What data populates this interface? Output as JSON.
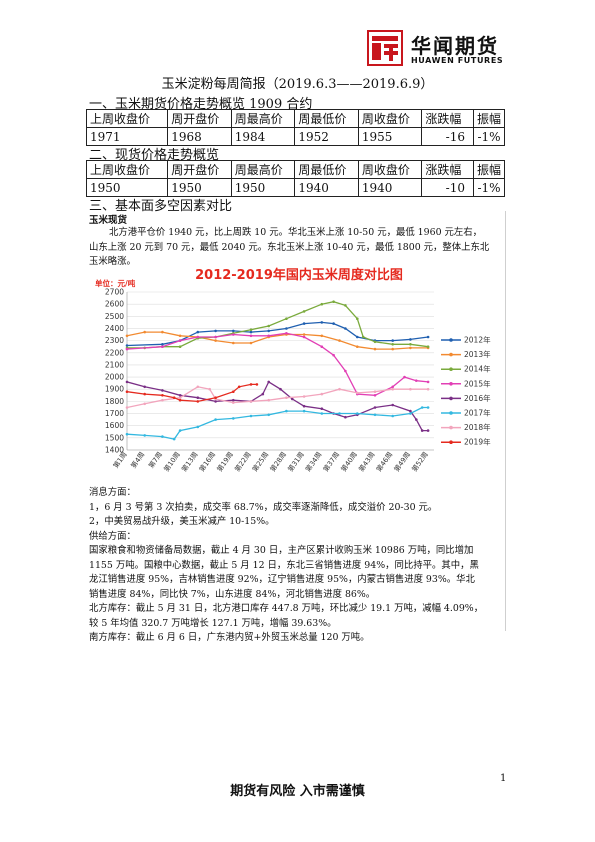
{
  "header": {
    "company_cn": "华闻期货",
    "company_en": "HUAWEN FUTURES",
    "logo_color": "#c8161d"
  },
  "title": "玉米淀粉每周简报（2019.6.3——2019.6.9）",
  "section1": {
    "heading": "一、玉米期货价格走势概览 1909 合约",
    "headers": [
      "上周收盘价",
      "周开盘价",
      "周最高价",
      "周最低价",
      "周收盘价",
      "涨跌幅",
      "振幅"
    ],
    "values": [
      "1971",
      "1968",
      "1984",
      "1952",
      "1955",
      "-16",
      "-1%"
    ]
  },
  "section2": {
    "heading": "二、现货价格走势概览",
    "headers": [
      "上周收盘价",
      "周开盘价",
      "周最高价",
      "周最低价",
      "周收盘价",
      "涨跌幅",
      "振幅"
    ],
    "values": [
      "1950",
      "1950",
      "1950",
      "1940",
      "1940",
      "-10",
      "-1%"
    ]
  },
  "section3": {
    "heading": "三、基本面多空因素对比",
    "sub": "玉米现货",
    "spot_lines": [
      "北方港平仓价 1940 元，比上周跌 10 元。华北玉米上涨 10-50 元，最低 1960 元左右，",
      "山东上涨 20 元到 70 元，最低 2040 元。东北玉米上涨 10-40 元，最低 1800 元，整体上东北",
      "玉米略涨。"
    ],
    "news_lines": [
      "消息方面：",
      "1，6 月 3 号第 3 次拍卖，成交率 68.7%，成交率逐渐降低，成交溢价 20-30 元。",
      "2，中美贸易战升级，美玉米减产 10-15%。",
      "供给方面：",
      "国家粮食和物资储备局数据，截止 4 月 30 日，主产区累计收购玉米 10986 万吨，同比增加",
      "1155 万吨。国粮中心数据，截止 5 月 12 日，东北三省销售进度 94%，同比持平。其中，黑",
      "龙江销售进度 95%，吉林销售进度 92%，辽宁销售进度 95%，内蒙古销售进度 93%。华北",
      "销售进度 84%，同比快 7%，山东进度 84%，河北销售进度 86%。",
      "北方库存：截止 5 月 31 日，北方港口库存 447.8 万吨，环比减少 19.1 万吨，减幅 4.09%，",
      "较 5 年均值 320.7 万吨增长 127.1 万吨，增幅 39.63%。",
      "南方库存：截止 6 月 6 日，广东港内贸+外贸玉米总量 120 万吨。"
    ]
  },
  "chart_data": {
    "type": "line",
    "title": "2012-2019年国内玉米周度对比图",
    "unit_label": "单位：元/吨",
    "ylim": [
      1400,
      2700
    ],
    "yticks": [
      1400,
      1500,
      1600,
      1700,
      1800,
      1900,
      2000,
      2100,
      2200,
      2300,
      2400,
      2500,
      2600,
      2700
    ],
    "xticks": [
      "第1周",
      "第4周",
      "第7周",
      "第10周",
      "第13周",
      "第16周",
      "第19周",
      "第22周",
      "第25周",
      "第28周",
      "第31周",
      "第34周",
      "第37周",
      "第40周",
      "第43周",
      "第46周",
      "第49周",
      "第52周"
    ],
    "grid": true,
    "legend_position": "right",
    "series": [
      {
        "name": "2012年",
        "color": "#1f5fb0",
        "points": [
          [
            1,
            2260
          ],
          [
            7,
            2270
          ],
          [
            10,
            2300
          ],
          [
            13,
            2370
          ],
          [
            16,
            2380
          ],
          [
            19,
            2380
          ],
          [
            22,
            2370
          ],
          [
            25,
            2380
          ],
          [
            28,
            2400
          ],
          [
            31,
            2440
          ],
          [
            34,
            2450
          ],
          [
            36,
            2440
          ],
          [
            38,
            2400
          ],
          [
            40,
            2330
          ],
          [
            43,
            2300
          ],
          [
            46,
            2300
          ],
          [
            49,
            2310
          ],
          [
            52,
            2330
          ]
        ]
      },
      {
        "name": "2013年",
        "color": "#f28a30",
        "points": [
          [
            1,
            2340
          ],
          [
            4,
            2370
          ],
          [
            7,
            2370
          ],
          [
            10,
            2340
          ],
          [
            13,
            2330
          ],
          [
            16,
            2300
          ],
          [
            19,
            2280
          ],
          [
            22,
            2280
          ],
          [
            25,
            2330
          ],
          [
            28,
            2350
          ],
          [
            31,
            2350
          ],
          [
            34,
            2340
          ],
          [
            37,
            2300
          ],
          [
            40,
            2250
          ],
          [
            43,
            2230
          ],
          [
            46,
            2230
          ],
          [
            49,
            2240
          ],
          [
            52,
            2240
          ]
        ]
      },
      {
        "name": "2014年",
        "color": "#7aaa3c",
        "points": [
          [
            1,
            2240
          ],
          [
            4,
            2240
          ],
          [
            7,
            2250
          ],
          [
            10,
            2250
          ],
          [
            13,
            2320
          ],
          [
            16,
            2330
          ],
          [
            19,
            2360
          ],
          [
            22,
            2390
          ],
          [
            25,
            2420
          ],
          [
            28,
            2480
          ],
          [
            31,
            2540
          ],
          [
            34,
            2600
          ],
          [
            36,
            2620
          ],
          [
            38,
            2590
          ],
          [
            40,
            2480
          ],
          [
            41,
            2330
          ],
          [
            43,
            2290
          ],
          [
            46,
            2270
          ],
          [
            49,
            2270
          ],
          [
            52,
            2250
          ]
        ]
      },
      {
        "name": "2015年",
        "color": "#e23fb5",
        "points": [
          [
            1,
            2230
          ],
          [
            7,
            2250
          ],
          [
            10,
            2300
          ],
          [
            13,
            2330
          ],
          [
            16,
            2330
          ],
          [
            19,
            2350
          ],
          [
            22,
            2340
          ],
          [
            25,
            2340
          ],
          [
            28,
            2360
          ],
          [
            31,
            2330
          ],
          [
            34,
            2250
          ],
          [
            36,
            2180
          ],
          [
            38,
            2050
          ],
          [
            40,
            1860
          ],
          [
            43,
            1850
          ],
          [
            46,
            1920
          ],
          [
            48,
            2000
          ],
          [
            50,
            1970
          ],
          [
            52,
            1960
          ]
        ]
      },
      {
        "name": "2016年",
        "color": "#7a2f86",
        "points": [
          [
            1,
            1960
          ],
          [
            4,
            1920
          ],
          [
            7,
            1890
          ],
          [
            10,
            1850
          ],
          [
            13,
            1830
          ],
          [
            16,
            1800
          ],
          [
            19,
            1810
          ],
          [
            22,
            1800
          ],
          [
            24,
            1860
          ],
          [
            25,
            1960
          ],
          [
            27,
            1900
          ],
          [
            29,
            1820
          ],
          [
            31,
            1760
          ],
          [
            34,
            1740
          ],
          [
            36,
            1700
          ],
          [
            38,
            1670
          ],
          [
            40,
            1690
          ],
          [
            43,
            1750
          ],
          [
            46,
            1770
          ],
          [
            49,
            1720
          ],
          [
            50,
            1650
          ],
          [
            51,
            1560
          ],
          [
            52,
            1560
          ]
        ]
      },
      {
        "name": "2017年",
        "color": "#33b8e0",
        "points": [
          [
            1,
            1530
          ],
          [
            4,
            1520
          ],
          [
            7,
            1510
          ],
          [
            9,
            1490
          ],
          [
            10,
            1560
          ],
          [
            13,
            1590
          ],
          [
            16,
            1650
          ],
          [
            19,
            1660
          ],
          [
            22,
            1680
          ],
          [
            25,
            1690
          ],
          [
            28,
            1720
          ],
          [
            31,
            1720
          ],
          [
            34,
            1700
          ],
          [
            37,
            1700
          ],
          [
            40,
            1700
          ],
          [
            43,
            1690
          ],
          [
            46,
            1680
          ],
          [
            49,
            1700
          ],
          [
            51,
            1750
          ],
          [
            52,
            1750
          ]
        ]
      },
      {
        "name": "2018年",
        "color": "#f2a5bd",
        "points": [
          [
            1,
            1750
          ],
          [
            4,
            1780
          ],
          [
            7,
            1810
          ],
          [
            10,
            1830
          ],
          [
            13,
            1920
          ],
          [
            15,
            1900
          ],
          [
            16,
            1820
          ],
          [
            19,
            1790
          ],
          [
            22,
            1800
          ],
          [
            25,
            1810
          ],
          [
            28,
            1830
          ],
          [
            31,
            1840
          ],
          [
            34,
            1860
          ],
          [
            37,
            1900
          ],
          [
            40,
            1870
          ],
          [
            43,
            1880
          ],
          [
            46,
            1900
          ],
          [
            49,
            1900
          ],
          [
            52,
            1900
          ]
        ]
      },
      {
        "name": "2019年",
        "color": "#e52a1f",
        "points": [
          [
            1,
            1880
          ],
          [
            4,
            1860
          ],
          [
            7,
            1850
          ],
          [
            9,
            1830
          ],
          [
            10,
            1810
          ],
          [
            13,
            1800
          ],
          [
            16,
            1830
          ],
          [
            19,
            1880
          ],
          [
            20,
            1920
          ],
          [
            22,
            1940
          ],
          [
            23,
            1940
          ]
        ]
      }
    ]
  }
}
